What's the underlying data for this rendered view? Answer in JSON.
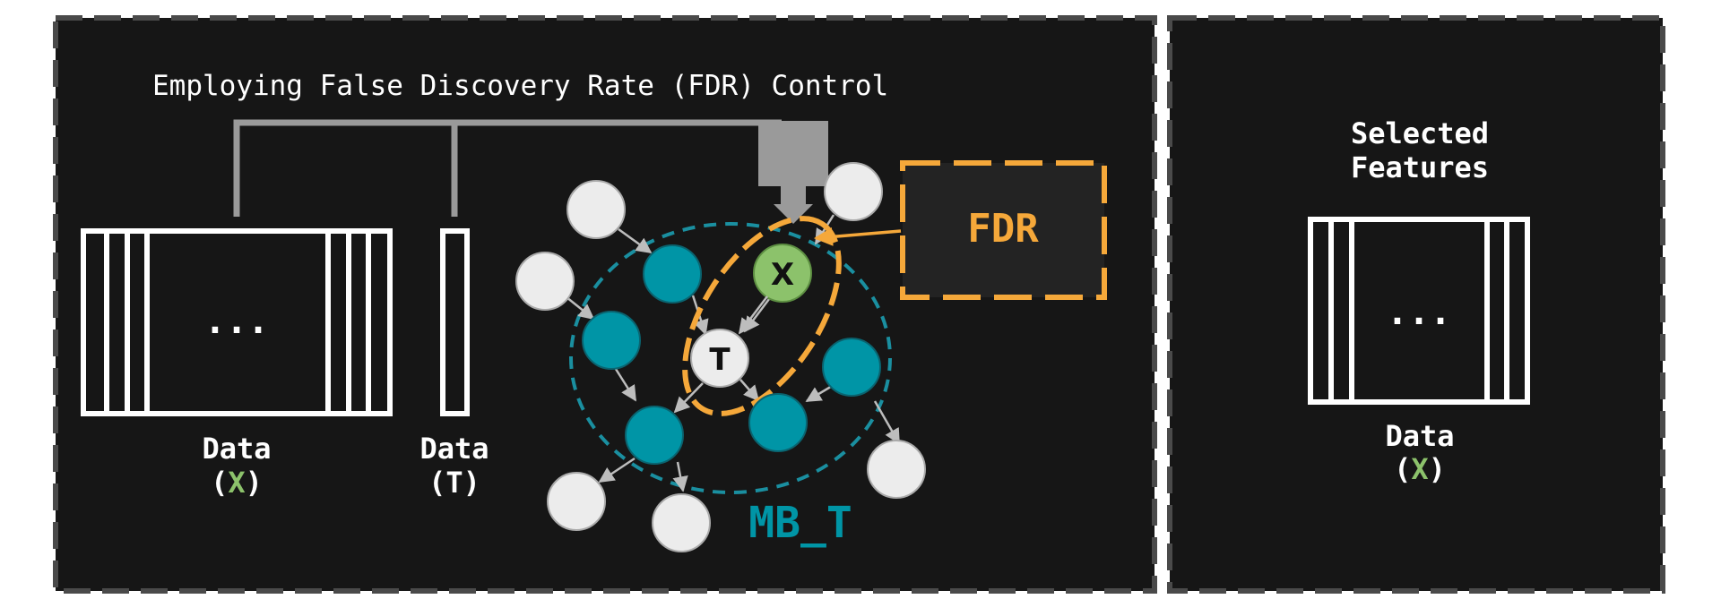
{
  "left_panel": {
    "banner": "Employing False Discovery Rate (FDR) Control",
    "matrix_dots": "...",
    "data_x_label": "Data",
    "data_x_paren_open": "(",
    "data_x_var": "X",
    "data_x_paren_close": ")",
    "data_t_label": "Data",
    "data_t_sub": "(T)",
    "node_x": "X",
    "node_t": "T",
    "fdr_label": "FDR",
    "mb_label": "MB_T"
  },
  "right_panel": {
    "title_line1": "Selected",
    "title_line2": "Features",
    "matrix_dots": "...",
    "data_label": "Data",
    "data_paren_open": "(",
    "data_var": "X",
    "data_paren_close": ")"
  },
  "colors": {
    "background": "#161616",
    "panel_border": "#4a4a4a",
    "white": "#ffffff",
    "gray_connector": "#9a9a9a",
    "teal": "#0095a6",
    "teal_dashed": "#1a8fa0",
    "green_node": "#8cc26b",
    "green_text": "#8cc26b",
    "orange": "#f5a83a",
    "light_node": "#ececec",
    "fdr_box_fill": "#232323"
  }
}
